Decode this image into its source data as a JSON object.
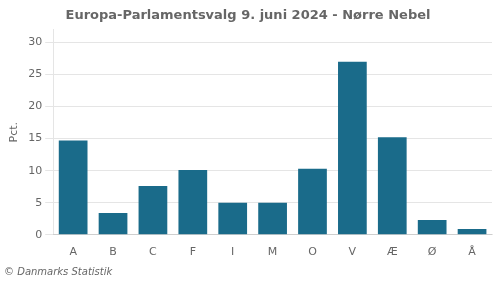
{
  "chart_data": {
    "type": "bar",
    "title": "Europa-Parlamentsvalg 9. juni 2024 - Nørre Nebel",
    "ylabel": "Pct.",
    "footer": "© Danmarks Statistik",
    "categories": [
      "A",
      "B",
      "C",
      "F",
      "I",
      "M",
      "O",
      "V",
      "Æ",
      "Ø",
      "Å"
    ],
    "values": [
      14.7,
      3.4,
      7.6,
      10.1,
      5.0,
      5.0,
      10.3,
      27.0,
      15.2,
      2.3,
      0.9
    ],
    "color": "#1a6b8a",
    "ylim": [
      0,
      32
    ],
    "yticks": [
      0,
      5,
      10,
      15,
      20,
      25,
      30
    ],
    "grid": true
  }
}
